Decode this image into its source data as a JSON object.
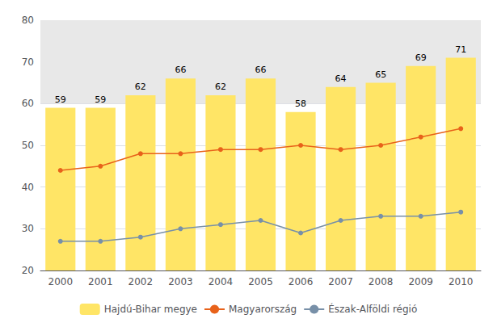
{
  "chart_data": {
    "type": "bar",
    "categories": [
      2000,
      2001,
      2002,
      2003,
      2004,
      2005,
      2006,
      2007,
      2008,
      2009,
      2010
    ],
    "series": [
      {
        "name": "Hajdú-Bihar megye",
        "type": "bar",
        "color": "#FFE566",
        "data_labels": true,
        "values": [
          59,
          59,
          62,
          66,
          62,
          66,
          58,
          64,
          65,
          69,
          71
        ]
      },
      {
        "name": "Magyarország",
        "type": "line",
        "color": "#E8621A",
        "marker": "circle",
        "values": [
          44,
          45,
          48,
          48,
          49,
          49,
          50,
          49,
          50,
          52,
          54
        ]
      },
      {
        "name": "Észak-Alföldi régió",
        "type": "line",
        "color": "#7890A8",
        "marker": "circle",
        "values": [
          27,
          27,
          28,
          30,
          31,
          32,
          29,
          32,
          33,
          33,
          34
        ]
      }
    ],
    "band": {
      "range": [
        60,
        80
      ],
      "color": "#E8E8E8"
    },
    "ylim": [
      20,
      80
    ],
    "yticks": [
      20,
      30,
      40,
      50,
      60,
      70,
      80
    ],
    "grid": true,
    "legend": "bottom"
  }
}
